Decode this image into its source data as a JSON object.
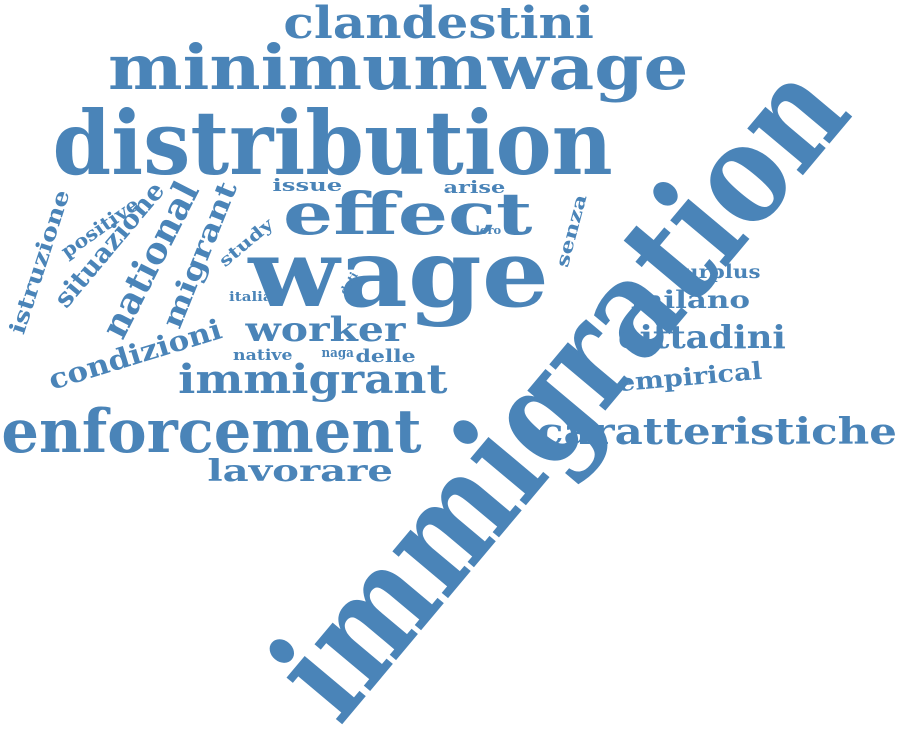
{
  "cloud": {
    "color": "#4a84b8",
    "words": [
      {
        "text": "immigration",
        "orientation": "diagonal"
      },
      {
        "text": "distribution",
        "orientation": "horizontal"
      },
      {
        "text": "wage",
        "orientation": "horizontal"
      },
      {
        "text": "minimumwage",
        "orientation": "horizontal"
      },
      {
        "text": "enforcement",
        "orientation": "horizontal"
      },
      {
        "text": "effect",
        "orientation": "horizontal"
      },
      {
        "text": "clandestini",
        "orientation": "horizontal"
      },
      {
        "text": "immigrant",
        "orientation": "horizontal"
      },
      {
        "text": "caratteristiche",
        "orientation": "horizontal"
      },
      {
        "text": "worker",
        "orientation": "horizontal"
      },
      {
        "text": "national",
        "orientation": "diagonal"
      },
      {
        "text": "cittadini",
        "orientation": "horizontal"
      },
      {
        "text": "lavorare",
        "orientation": "horizontal"
      },
      {
        "text": "condizioni",
        "orientation": "diagonal"
      },
      {
        "text": "migrant",
        "orientation": "diagonal"
      },
      {
        "text": "situazione",
        "orientation": "diagonal"
      },
      {
        "text": "empirical",
        "orientation": "horizontal"
      },
      {
        "text": "milano",
        "orientation": "horizontal"
      },
      {
        "text": "istruzione",
        "orientation": "diagonal"
      },
      {
        "text": "positive",
        "orientation": "diagonal"
      },
      {
        "text": "surplus",
        "orientation": "horizontal"
      },
      {
        "text": "senza",
        "orientation": "diagonal"
      },
      {
        "text": "study",
        "orientation": "diagonal"
      },
      {
        "text": "issue",
        "orientation": "horizontal"
      },
      {
        "text": "arise",
        "orientation": "horizontal"
      },
      {
        "text": "delle",
        "orientation": "horizontal"
      },
      {
        "text": "native",
        "orientation": "horizontal"
      },
      {
        "text": "naga",
        "orientation": "horizontal"
      },
      {
        "text": "italia",
        "orientation": "horizontal"
      },
      {
        "text": "loro",
        "orientation": "horizontal"
      },
      {
        "text": "dati",
        "orientation": "diagonal"
      }
    ]
  }
}
